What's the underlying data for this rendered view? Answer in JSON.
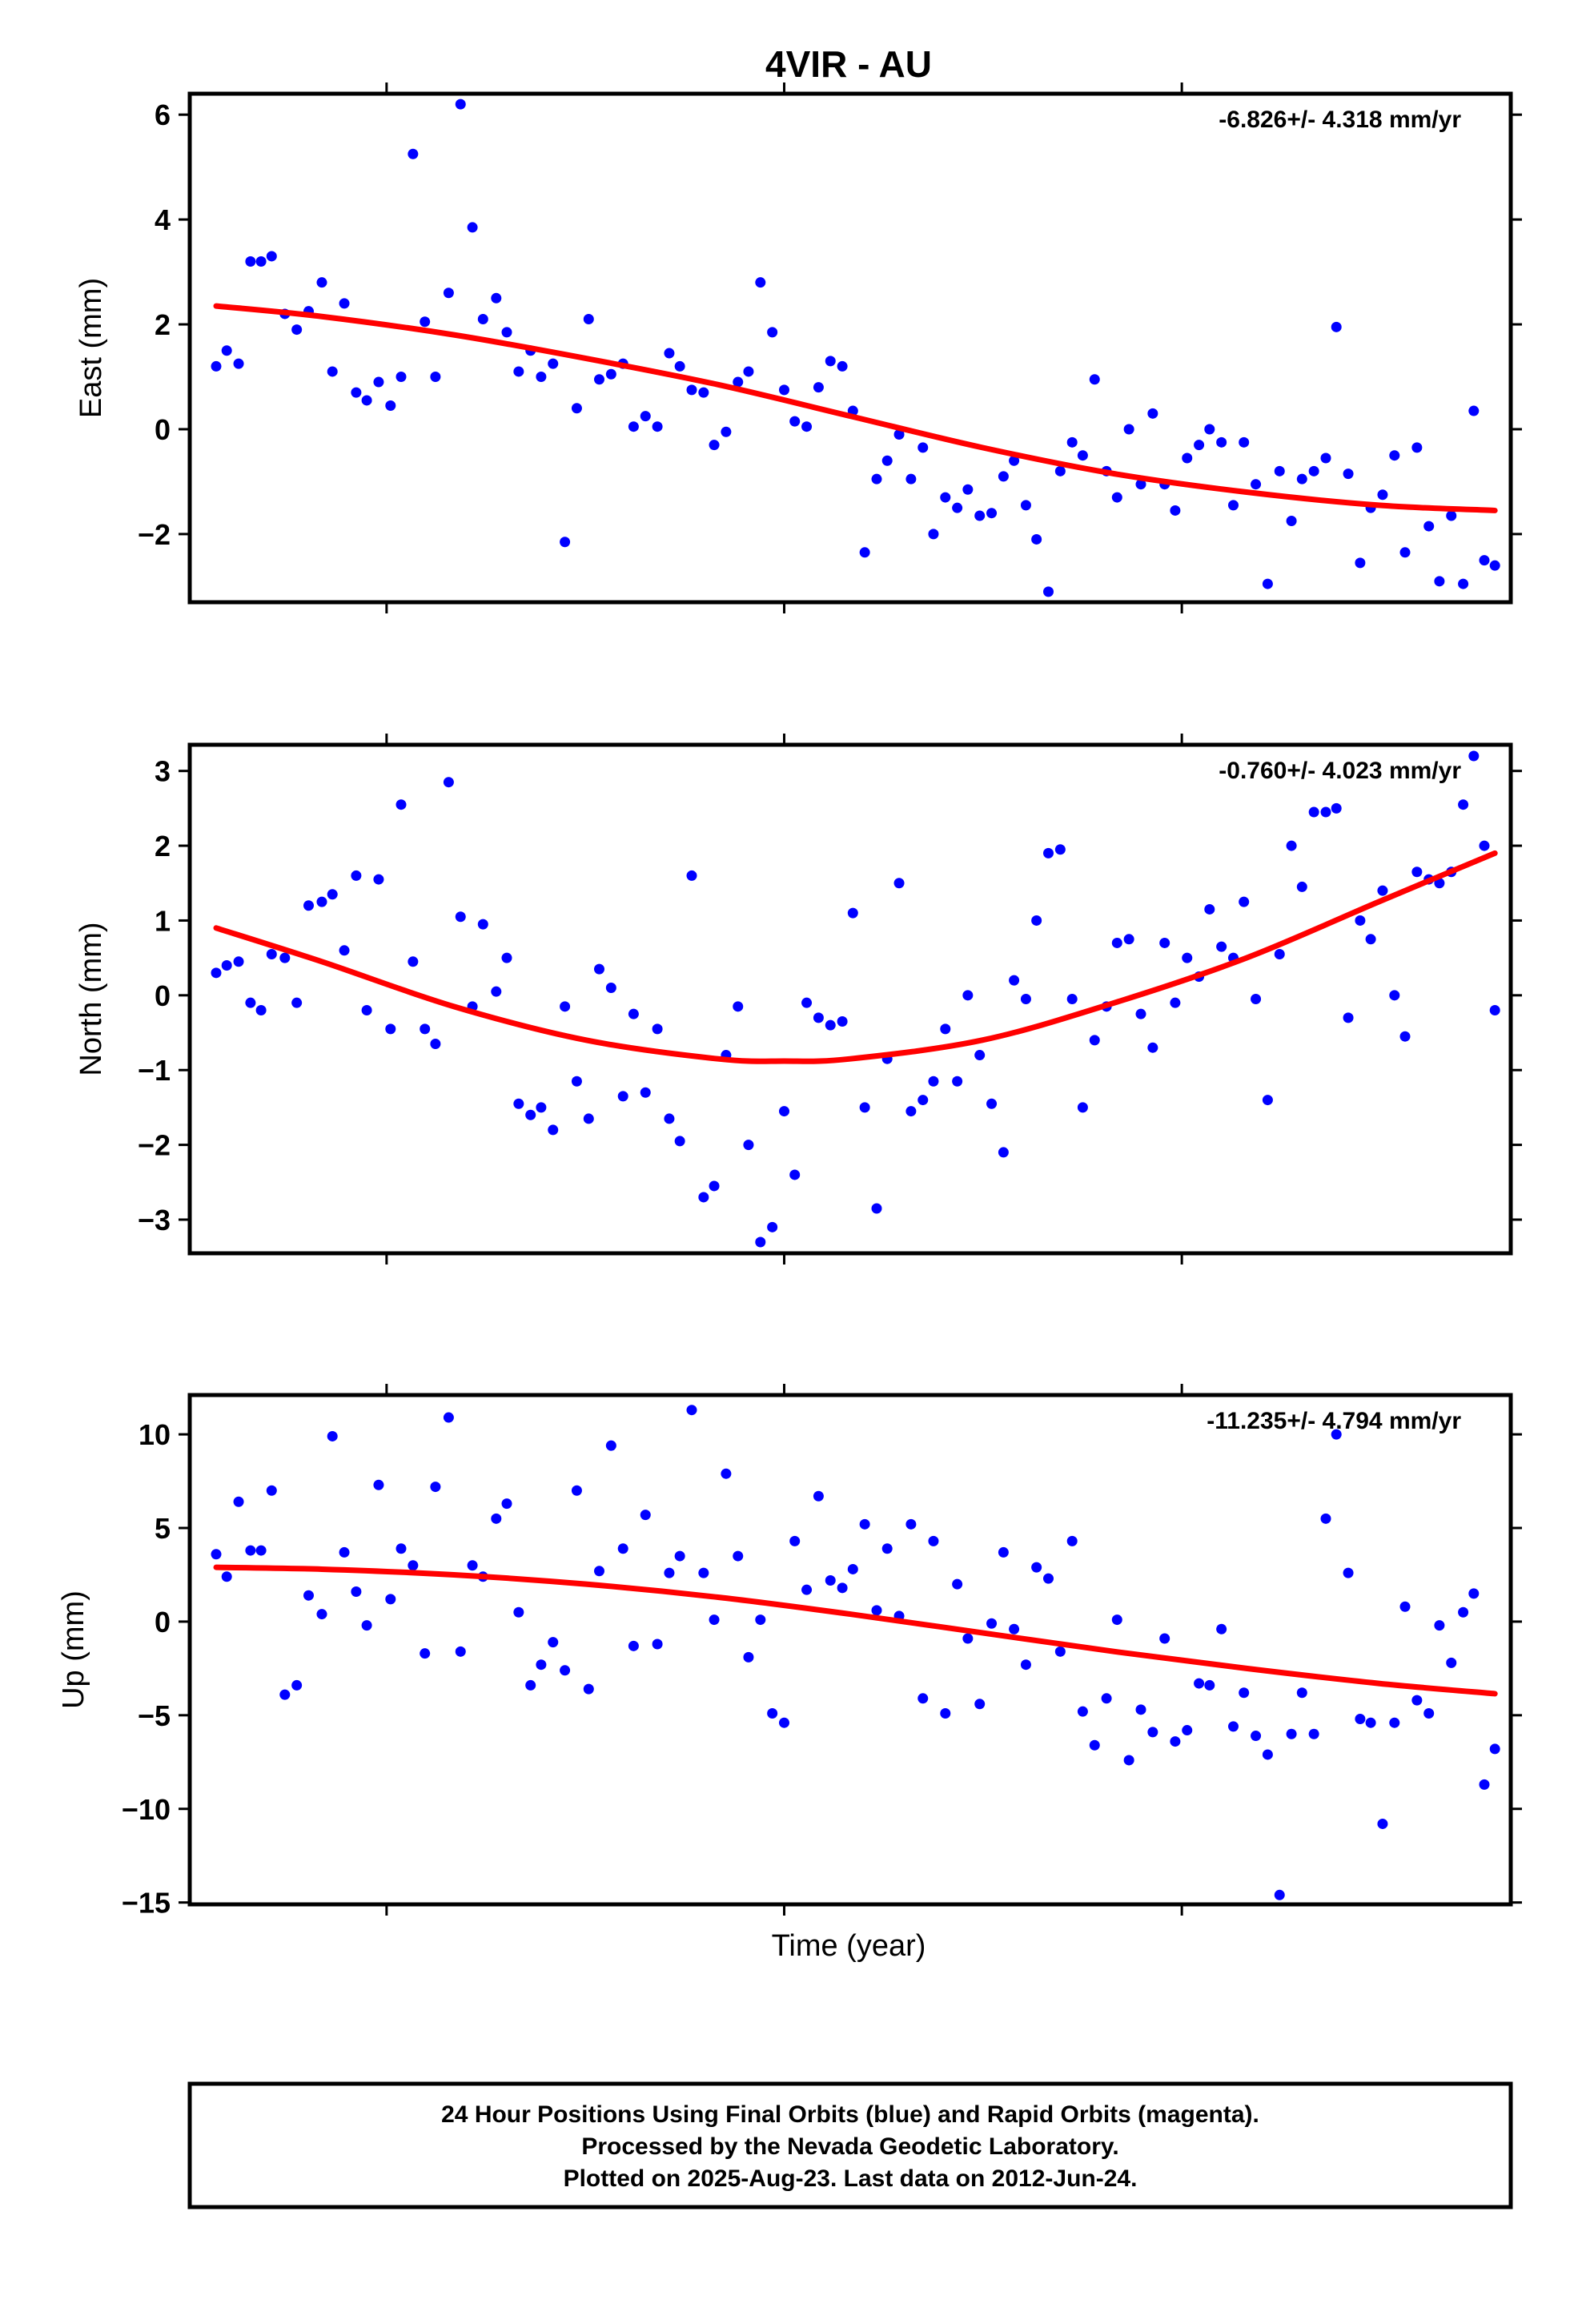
{
  "title": "4VIR - AU",
  "xlabel": "Time (year)",
  "colors": {
    "final_orbits": "#0000ff",
    "fit_line": "#ff0000",
    "axes": "#000000"
  },
  "footer": {
    "lines": [
      "24 Hour Positions Using Final Orbits (blue) and Rapid Orbits (magenta).",
      "Processed by the Nevada Geodetic Laboratory.",
      "Plotted on 2025-Aug-23. Last data on 2012-Jun-24."
    ]
  },
  "chart_data": [
    {
      "type": "scatter",
      "ylabel": "East (mm)",
      "rate_label": "-6.826+/- 4.318 mm/yr",
      "xlim": [
        0,
        1
      ],
      "ylim": [
        -3.3,
        6.4
      ],
      "yticks": [
        6,
        4,
        2,
        0,
        -2
      ],
      "ytick_labels": [
        "6",
        "4",
        "2",
        "0",
        "−2"
      ],
      "points": {
        "x": [
          0.02,
          0.028,
          0.037,
          0.046,
          0.054,
          0.062,
          0.072,
          0.081,
          0.09,
          0.1,
          0.108,
          0.117,
          0.126,
          0.134,
          0.143,
          0.152,
          0.16,
          0.169,
          0.178,
          0.186,
          0.196,
          0.205,
          0.214,
          0.222,
          0.232,
          0.24,
          0.249,
          0.258,
          0.266,
          0.275,
          0.284,
          0.293,
          0.302,
          0.31,
          0.319,
          0.328,
          0.336,
          0.345,
          0.354,
          0.363,
          0.371,
          0.38,
          0.389,
          0.397,
          0.406,
          0.415,
          0.423,
          0.432,
          0.441,
          0.45,
          0.458,
          0.467,
          0.476,
          0.485,
          0.494,
          0.502,
          0.511,
          0.52,
          0.528,
          0.537,
          0.546,
          0.555,
          0.563,
          0.572,
          0.581,
          0.589,
          0.598,
          0.607,
          0.616,
          0.624,
          0.633,
          0.641,
          0.65,
          0.659,
          0.668,
          0.676,
          0.685,
          0.694,
          0.702,
          0.711,
          0.72,
          0.729,
          0.738,
          0.746,
          0.755,
          0.764,
          0.772,
          0.781,
          0.79,
          0.798,
          0.807,
          0.816,
          0.825,
          0.834,
          0.842,
          0.851,
          0.86,
          0.868,
          0.877,
          0.886,
          0.894,
          0.903,
          0.912,
          0.92,
          0.929,
          0.938,
          0.946,
          0.955,
          0.964,
          0.972,
          0.98,
          0.988
        ],
        "y": [
          1.2,
          1.5,
          1.25,
          3.2,
          3.2,
          3.3,
          2.2,
          1.9,
          2.25,
          2.8,
          1.1,
          2.4,
          0.7,
          0.55,
          0.9,
          0.45,
          1.0,
          5.25,
          2.05,
          1.0,
          2.6,
          6.2,
          3.85,
          2.1,
          2.5,
          1.85,
          1.1,
          1.5,
          1.0,
          1.25,
          -2.15,
          0.4,
          2.1,
          0.95,
          1.05,
          1.25,
          0.05,
          0.25,
          0.05,
          1.45,
          1.2,
          0.75,
          0.7,
          -0.3,
          -0.05,
          0.9,
          1.1,
          2.8,
          1.85,
          0.75,
          0.15,
          0.05,
          0.8,
          1.3,
          1.2,
          0.35,
          -2.35,
          -0.95,
          -0.6,
          -0.1,
          -0.95,
          -0.35,
          -2.0,
          -1.3,
          -1.5,
          -1.15,
          -1.65,
          -1.6,
          -0.9,
          -0.6,
          -1.45,
          -2.1,
          -3.1,
          -0.8,
          -0.25,
          -0.5,
          0.95,
          -0.8,
          -1.3,
          0.0,
          -1.05,
          0.3,
          -1.05,
          -1.55,
          -0.55,
          -0.3,
          0.0,
          -0.25,
          -1.45,
          -0.25,
          -1.05,
          -2.95,
          -0.8,
          -1.75,
          -0.95,
          -0.8,
          -0.55,
          1.95,
          -0.85,
          -2.55,
          -1.5,
          -1.25,
          -0.5,
          -2.35,
          -0.35,
          -1.85,
          -2.9,
          -1.65,
          -2.95,
          0.35,
          -2.5,
          -2.6
        ]
      },
      "fit": {
        "x": [
          0.02,
          0.1,
          0.2,
          0.3,
          0.4,
          0.5,
          0.6,
          0.7,
          0.8,
          0.9,
          0.988
        ],
        "y": [
          2.35,
          2.15,
          1.8,
          1.35,
          0.85,
          0.25,
          -0.35,
          -0.85,
          -1.2,
          -1.45,
          -1.55
        ]
      }
    },
    {
      "type": "scatter",
      "ylabel": "North (mm)",
      "rate_label": "-0.760+/- 4.023 mm/yr",
      "xlim": [
        0,
        1
      ],
      "ylim": [
        -3.45,
        3.35
      ],
      "yticks": [
        3,
        2,
        1,
        0,
        -1,
        -2,
        -3
      ],
      "ytick_labels": [
        "3",
        "2",
        "1",
        "0",
        "−1",
        "−2",
        "−3"
      ],
      "points": {
        "x": [
          0.02,
          0.028,
          0.037,
          0.046,
          0.054,
          0.062,
          0.072,
          0.081,
          0.09,
          0.1,
          0.108,
          0.117,
          0.126,
          0.134,
          0.143,
          0.152,
          0.16,
          0.169,
          0.178,
          0.186,
          0.196,
          0.205,
          0.214,
          0.222,
          0.232,
          0.24,
          0.249,
          0.258,
          0.266,
          0.275,
          0.284,
          0.293,
          0.302,
          0.31,
          0.319,
          0.328,
          0.336,
          0.345,
          0.354,
          0.363,
          0.371,
          0.38,
          0.389,
          0.397,
          0.406,
          0.415,
          0.423,
          0.432,
          0.441,
          0.45,
          0.458,
          0.467,
          0.476,
          0.485,
          0.494,
          0.502,
          0.511,
          0.52,
          0.528,
          0.537,
          0.546,
          0.555,
          0.563,
          0.572,
          0.581,
          0.589,
          0.598,
          0.607,
          0.616,
          0.624,
          0.633,
          0.641,
          0.65,
          0.659,
          0.668,
          0.676,
          0.685,
          0.694,
          0.702,
          0.711,
          0.72,
          0.729,
          0.738,
          0.746,
          0.755,
          0.764,
          0.772,
          0.781,
          0.79,
          0.798,
          0.807,
          0.816,
          0.825,
          0.834,
          0.842,
          0.851,
          0.86,
          0.868,
          0.877,
          0.886,
          0.894,
          0.903,
          0.912,
          0.92,
          0.929,
          0.938,
          0.946,
          0.955,
          0.964,
          0.972,
          0.98,
          0.988
        ],
        "y": [
          0.3,
          0.4,
          0.45,
          -0.1,
          -0.2,
          0.55,
          0.5,
          -0.1,
          1.2,
          1.25,
          1.35,
          0.6,
          1.6,
          -0.2,
          1.55,
          -0.45,
          2.55,
          0.45,
          -0.45,
          -0.65,
          2.85,
          1.05,
          -0.15,
          0.95,
          0.05,
          0.5,
          -1.45,
          -1.6,
          -1.5,
          -1.8,
          -0.15,
          -1.15,
          -1.65,
          0.35,
          0.1,
          -1.35,
          -0.25,
          -1.3,
          -0.45,
          -1.65,
          -1.95,
          1.6,
          -2.7,
          -2.55,
          -0.8,
          -0.15,
          -2.0,
          -3.3,
          -3.1,
          -1.55,
          -2.4,
          -0.1,
          -0.3,
          -0.4,
          -0.35,
          1.1,
          -1.5,
          -2.85,
          -0.85,
          1.5,
          -1.55,
          -1.4,
          -1.15,
          -0.45,
          -1.15,
          0.0,
          -0.8,
          -1.45,
          -2.1,
          0.2,
          -0.05,
          1.0,
          1.9,
          1.95,
          -0.05,
          -1.5,
          -0.6,
          -0.15,
          0.7,
          0.75,
          -0.25,
          -0.7,
          0.7,
          -0.1,
          0.5,
          0.25,
          1.15,
          0.65,
          0.5,
          1.25,
          -0.05,
          -1.4,
          0.55,
          2.0,
          1.45,
          2.45,
          2.45,
          2.5,
          -0.3,
          1.0,
          0.75,
          1.4,
          0.0,
          -0.55,
          1.65,
          1.55,
          1.5,
          1.65,
          2.55,
          3.2,
          2.0,
          -0.2
        ]
      },
      "fit": {
        "x": [
          0.02,
          0.1,
          0.2,
          0.3,
          0.4,
          0.45,
          0.5,
          0.6,
          0.7,
          0.8,
          0.9,
          0.988
        ],
        "y": [
          0.9,
          0.45,
          -0.15,
          -0.6,
          -0.85,
          -0.88,
          -0.85,
          -0.6,
          -0.1,
          0.5,
          1.25,
          1.9
        ]
      }
    },
    {
      "type": "scatter",
      "ylabel": "Up (mm)",
      "rate_label": "-11.235+/- 4.794 mm/yr",
      "xlim": [
        0,
        1
      ],
      "ylim": [
        -15.1,
        12.1
      ],
      "yticks": [
        10,
        5,
        0,
        -5,
        -10,
        -15
      ],
      "ytick_labels": [
        "10",
        "5",
        "0",
        "−5",
        "−10",
        "−15"
      ],
      "points": {
        "x": [
          0.02,
          0.028,
          0.037,
          0.046,
          0.054,
          0.062,
          0.072,
          0.081,
          0.09,
          0.1,
          0.108,
          0.117,
          0.126,
          0.134,
          0.143,
          0.152,
          0.16,
          0.169,
          0.178,
          0.186,
          0.196,
          0.205,
          0.214,
          0.222,
          0.232,
          0.24,
          0.249,
          0.258,
          0.266,
          0.275,
          0.284,
          0.293,
          0.302,
          0.31,
          0.319,
          0.328,
          0.336,
          0.345,
          0.354,
          0.363,
          0.371,
          0.38,
          0.389,
          0.397,
          0.406,
          0.415,
          0.423,
          0.432,
          0.441,
          0.45,
          0.458,
          0.467,
          0.476,
          0.485,
          0.494,
          0.502,
          0.511,
          0.52,
          0.528,
          0.537,
          0.546,
          0.555,
          0.563,
          0.572,
          0.581,
          0.589,
          0.598,
          0.607,
          0.616,
          0.624,
          0.633,
          0.641,
          0.65,
          0.659,
          0.668,
          0.676,
          0.685,
          0.694,
          0.702,
          0.711,
          0.72,
          0.729,
          0.738,
          0.746,
          0.755,
          0.764,
          0.772,
          0.781,
          0.79,
          0.798,
          0.807,
          0.816,
          0.825,
          0.834,
          0.842,
          0.851,
          0.86,
          0.868,
          0.877,
          0.886,
          0.894,
          0.903,
          0.912,
          0.92,
          0.929,
          0.938,
          0.946,
          0.955,
          0.964,
          0.972,
          0.98,
          0.988
        ],
        "y": [
          3.6,
          2.4,
          6.4,
          3.8,
          3.8,
          7.0,
          -3.9,
          -3.4,
          1.4,
          0.4,
          9.9,
          3.7,
          1.6,
          -0.2,
          7.3,
          1.2,
          3.9,
          3.0,
          -1.7,
          7.2,
          10.9,
          -1.6,
          3.0,
          2.4,
          5.5,
          6.3,
          0.5,
          -3.4,
          -2.3,
          -1.1,
          -2.6,
          7.0,
          -3.6,
          2.7,
          9.4,
          3.9,
          -1.3,
          5.7,
          -1.2,
          2.6,
          3.5,
          11.3,
          2.6,
          0.1,
          7.9,
          3.5,
          -1.9,
          0.1,
          -4.9,
          -5.4,
          4.3,
          1.7,
          6.7,
          2.2,
          1.8,
          2.8,
          5.2,
          0.6,
          3.9,
          0.3,
          5.2,
          -4.1,
          4.3,
          -4.9,
          2.0,
          -0.9,
          -4.4,
          -0.1,
          3.7,
          -0.4,
          -2.3,
          2.9,
          2.3,
          -1.6,
          4.3,
          -4.8,
          -6.6,
          -4.1,
          0.1,
          -7.4,
          -4.7,
          -5.9,
          -0.9,
          -6.4,
          -5.8,
          -3.3,
          -3.4,
          -0.4,
          -5.6,
          -3.8,
          -6.1,
          -7.1,
          -14.6,
          -6.0,
          -3.8,
          -6.0,
          5.5,
          10.0,
          2.6,
          -5.2,
          -5.4,
          -10.8,
          -5.4,
          0.8,
          -4.2,
          -4.9,
          -0.2,
          -2.2,
          0.5,
          1.5,
          -8.7,
          -6.8
        ]
      },
      "fit": {
        "x": [
          0.02,
          0.1,
          0.2,
          0.3,
          0.4,
          0.5,
          0.6,
          0.7,
          0.8,
          0.9,
          0.988
        ],
        "y": [
          2.9,
          2.8,
          2.5,
          2.0,
          1.3,
          0.4,
          -0.6,
          -1.6,
          -2.5,
          -3.3,
          -3.85
        ]
      }
    }
  ]
}
